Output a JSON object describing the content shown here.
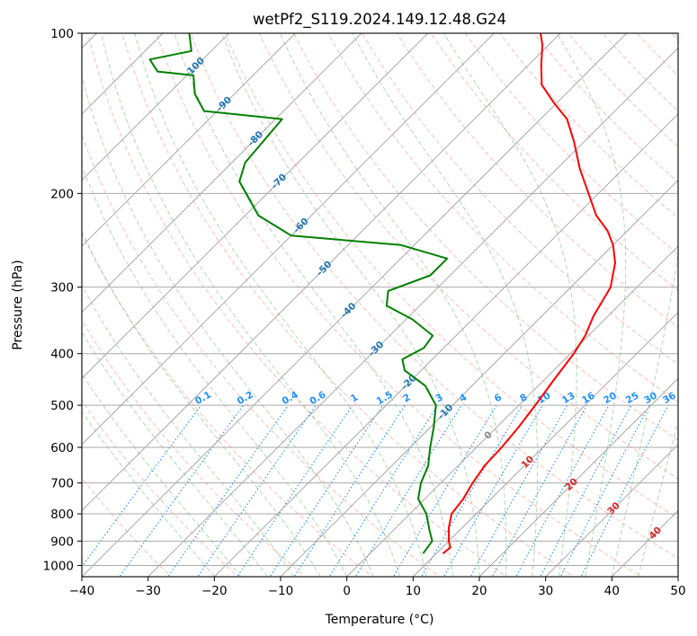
{
  "chart_data": {
    "type": "line",
    "title": "wetPf2_S119.2024.149.12.48.G24",
    "xlabel": "Temperature (°C)",
    "ylabel": "Pressure (hPa)",
    "xlim": [
      -40,
      50
    ],
    "ylim": [
      1050,
      100
    ],
    "y_scale": "log",
    "grid": true,
    "x_ticks": [
      -40,
      -30,
      -20,
      -10,
      0,
      10,
      20,
      30,
      40,
      50
    ],
    "x_tick_labels": [
      "−40",
      "−30",
      "−20",
      "−10",
      "0",
      "10",
      "20",
      "30",
      "40",
      "50"
    ],
    "y_ticks": [
      1000,
      900,
      800,
      700,
      600,
      500,
      400,
      300,
      200,
      100
    ],
    "y_tick_labels": [
      "1000",
      "900",
      "800",
      "700",
      "600",
      "500",
      "400",
      "300",
      "200",
      "100"
    ],
    "colors": {
      "temperature": "#ff0000",
      "dewpoint": "#008000",
      "isotherm": "#a9a9a9",
      "dry_adiabat": "#fa8072",
      "moist_adiabat": "#4daf4a",
      "mixing_ratio": "#1e90ff",
      "mixing_ratio_label": "#1e90ff",
      "isotherm_label_cold": "#1f77b4",
      "isotherm_label_zero": "#888888",
      "isotherm_label_warm": "#d62728"
    },
    "series": [
      {
        "role": "temperature",
        "points": [
          {
            "p": 950,
            "t": 11.0
          },
          {
            "p": 925,
            "t": 11.2
          },
          {
            "p": 900,
            "t": 10.0
          },
          {
            "p": 850,
            "t": 8.0
          },
          {
            "p": 800,
            "t": 6.3
          },
          {
            "p": 750,
            "t": 5.8
          },
          {
            "p": 700,
            "t": 4.8
          },
          {
            "p": 650,
            "t": 4.0
          },
          {
            "p": 600,
            "t": 3.8
          },
          {
            "p": 550,
            "t": 3.3
          },
          {
            "p": 500,
            "t": 2.5
          },
          {
            "p": 450,
            "t": 1.5
          },
          {
            "p": 400,
            "t": 0.5
          },
          {
            "p": 370,
            "t": -0.5
          },
          {
            "p": 340,
            "t": -2.2
          },
          {
            "p": 300,
            "t": -4.0
          },
          {
            "p": 270,
            "t": -7.0
          },
          {
            "p": 250,
            "t": -10.0
          },
          {
            "p": 235,
            "t": -13.0
          },
          {
            "p": 220,
            "t": -17.0
          },
          {
            "p": 200,
            "t": -21.5
          },
          {
            "p": 180,
            "t": -26.5
          },
          {
            "p": 160,
            "t": -31.5
          },
          {
            "p": 145,
            "t": -36.0
          },
          {
            "p": 135,
            "t": -40.5
          },
          {
            "p": 125,
            "t": -45.0
          },
          {
            "p": 115,
            "t": -48.0
          },
          {
            "p": 105,
            "t": -51.0
          },
          {
            "p": 100,
            "t": -53.0
          }
        ]
      },
      {
        "role": "dewpoint",
        "points": [
          {
            "p": 950,
            "t": 8.0
          },
          {
            "p": 900,
            "t": 7.5
          },
          {
            "p": 860,
            "t": 5.5
          },
          {
            "p": 800,
            "t": 2.5
          },
          {
            "p": 750,
            "t": -1.0
          },
          {
            "p": 700,
            "t": -3.0
          },
          {
            "p": 650,
            "t": -4.5
          },
          {
            "p": 600,
            "t": -7.0
          },
          {
            "p": 550,
            "t": -9.5
          },
          {
            "p": 500,
            "t": -12.5
          },
          {
            "p": 460,
            "t": -17.0
          },
          {
            "p": 430,
            "t": -22.5
          },
          {
            "p": 410,
            "t": -24.5
          },
          {
            "p": 390,
            "t": -23.0
          },
          {
            "p": 370,
            "t": -23.5
          },
          {
            "p": 345,
            "t": -29.0
          },
          {
            "p": 325,
            "t": -35.0
          },
          {
            "p": 305,
            "t": -37.0
          },
          {
            "p": 285,
            "t": -33.0
          },
          {
            "p": 265,
            "t": -33.0
          },
          {
            "p": 250,
            "t": -42.0
          },
          {
            "p": 240,
            "t": -60.0
          },
          {
            "p": 220,
            "t": -68.0
          },
          {
            "p": 190,
            "t": -76.0
          },
          {
            "p": 175,
            "t": -78.0
          },
          {
            "p": 145,
            "t": -79.0
          },
          {
            "p": 140,
            "t": -92.0
          },
          {
            "p": 130,
            "t": -96.0
          },
          {
            "p": 120,
            "t": -99.0
          },
          {
            "p": 118,
            "t": -105.0
          },
          {
            "p": 112,
            "t": -108.0
          },
          {
            "p": 108,
            "t": -103.0
          },
          {
            "p": 100,
            "t": -106.0
          }
        ]
      }
    ],
    "mixing_ratio_values": [
      0.1,
      0.2,
      0.4,
      0.6,
      1,
      1.5,
      2,
      3,
      4,
      6,
      8,
      10,
      13,
      16,
      20,
      25,
      30,
      36
    ],
    "mixing_ratio_labels": [
      "0.1",
      "0.2",
      "0.4",
      "0.6",
      "1",
      "1.5",
      "2",
      "3",
      "4",
      "6",
      "8",
      "10",
      "13",
      "16",
      "20",
      "25",
      "30",
      "36"
    ],
    "isotherm_label_values": [
      -100,
      -90,
      -80,
      -70,
      -60,
      -50,
      -40,
      -30,
      -20,
      -10,
      0,
      10,
      20,
      30,
      40
    ],
    "isotherm_labels": [
      "-100",
      "-90",
      "-80",
      "-70",
      "-60",
      "-50",
      "-40",
      "-30",
      "-20",
      "-10",
      "0",
      "10",
      "20",
      "30",
      "40"
    ]
  }
}
